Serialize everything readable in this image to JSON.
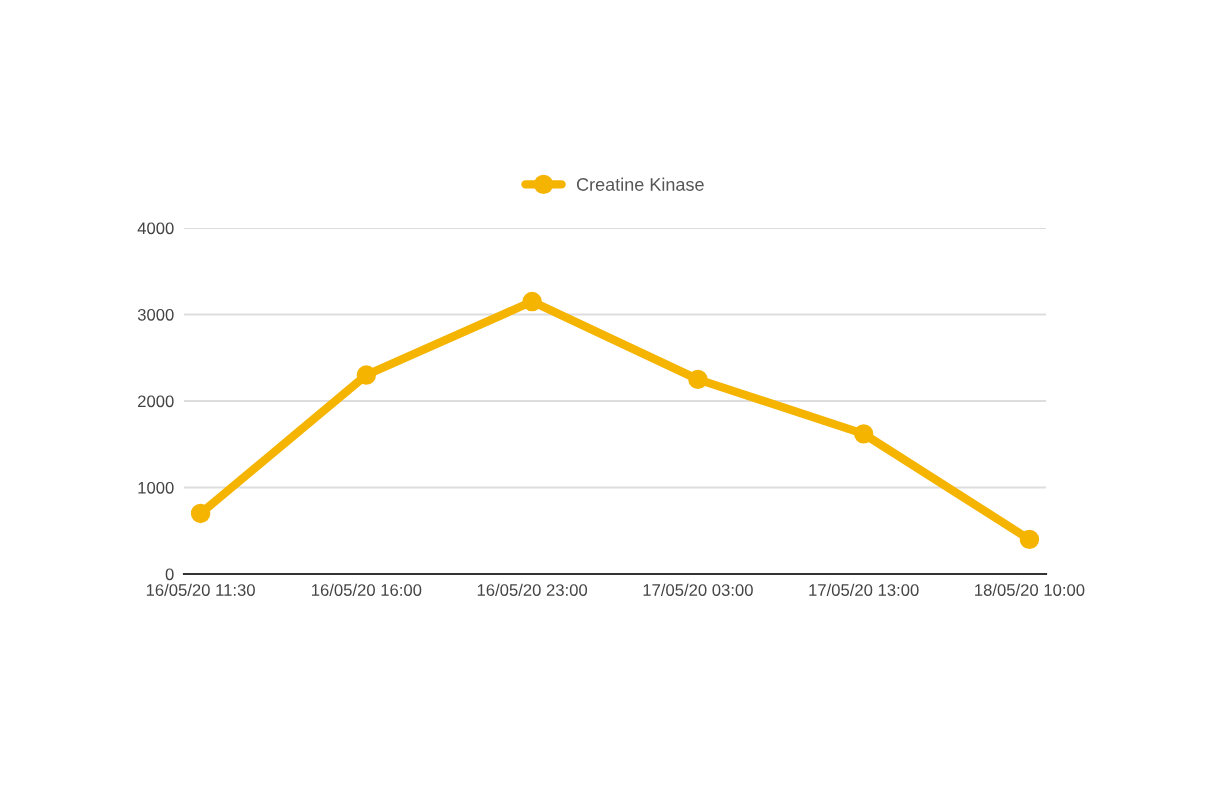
{
  "chart_data": {
    "type": "line",
    "categories": [
      "16/05/20 11:30",
      "16/05/20 16:00",
      "16/05/20 23:00",
      "17/05/20 03:00",
      "17/05/20 13:00",
      "18/05/20 10:00"
    ],
    "series": [
      {
        "name": "Creatine Kinase",
        "color": "#f4b400",
        "values": [
          700,
          2300,
          3150,
          2250,
          1620,
          400
        ]
      }
    ],
    "ylim": [
      0,
      4000
    ],
    "yticks": [
      0,
      1000,
      2000,
      3000,
      4000
    ],
    "grid": "y",
    "legend": "top",
    "marker": "circle",
    "line_style": "solid"
  }
}
